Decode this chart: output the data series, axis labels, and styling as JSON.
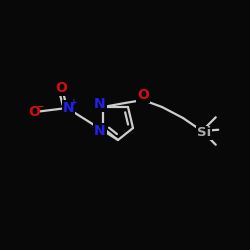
{
  "background_color": "#080808",
  "bond_color": "#cccccc",
  "bond_lw": 1.6,
  "atom_colors": {
    "N": "#2020ee",
    "O": "#cc1010",
    "Si": "#aaaaaa",
    "C": "#cccccc"
  },
  "font_size": 10,
  "font_size_super": 6.5,
  "figsize": [
    2.5,
    2.5
  ],
  "dpi": 100,
  "xlim": [
    0,
    10
  ],
  "ylim": [
    0,
    10
  ]
}
